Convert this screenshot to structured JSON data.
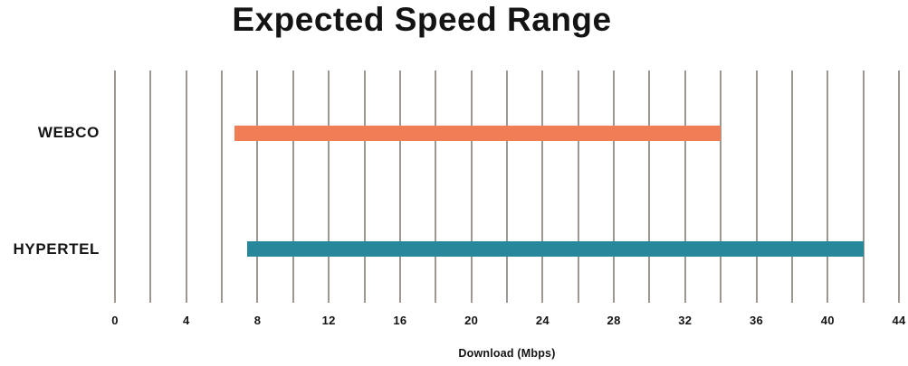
{
  "title": "Expected Speed Range",
  "chart_data": {
    "type": "bar",
    "subtype": "horizontal-range-bars",
    "title": "Expected Speed Range",
    "categories": [
      "WEBCO",
      "HYPERTEL"
    ],
    "series": [
      {
        "name": "WEBCO",
        "min": 6.7,
        "max": 34,
        "color": "#F17D57"
      },
      {
        "name": "HYPERTEL",
        "min": 7.4,
        "max": 42,
        "color": "#27879B"
      }
    ],
    "xlabel": "Download (Mbps)",
    "ylabel": "",
    "xlim": [
      0,
      44
    ],
    "xticks": [
      0,
      4,
      8,
      12,
      16,
      20,
      24,
      28,
      32,
      36,
      40,
      44
    ],
    "gridline_step": 2,
    "grid": true,
    "legend_position": "none"
  },
  "colors": {
    "background": "#FFFFFF",
    "gridline": "#9D9892",
    "text": "#141414",
    "webco_bar": "#F17D57",
    "hypertel_bar": "#27879B"
  }
}
